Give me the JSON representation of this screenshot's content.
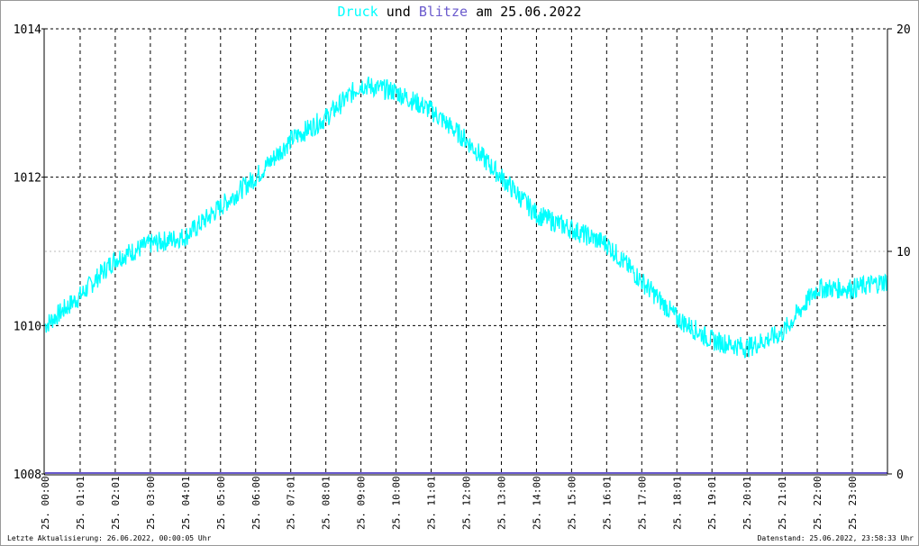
{
  "title": {
    "part1": "Druck",
    "part2": "und",
    "part3": "Blitze",
    "part4": "am 25.06.2022"
  },
  "footer": {
    "left": "Letzte Aktualisierung: 26.06.2022, 00:00:05 Uhr",
    "right": "Datenstand: 25.06.2022, 23:58:33 Uhr"
  },
  "colors": {
    "druck": "#00ffff",
    "blitze": "#6a5acd",
    "grid": "#000000"
  },
  "chart_data": {
    "type": "line",
    "title": "Druck und Blitze am 25.06.2022",
    "x_unit": "hours",
    "xlim": [
      0,
      24
    ],
    "ylim_left": [
      1008,
      1014
    ],
    "ylim_right": [
      0,
      20
    ],
    "yticks_left": [
      "1008",
      "1010",
      "1012",
      "1014"
    ],
    "yticks_right": [
      "0",
      "10",
      "20"
    ],
    "xtick_labels": [
      "25. 00:00",
      "25. 01:01",
      "25. 02:01",
      "25. 03:00",
      "25. 04:01",
      "25. 05:00",
      "25. 06:00",
      "25. 07:01",
      "25. 08:01",
      "25. 09:00",
      "25. 10:00",
      "25. 11:01",
      "25. 12:00",
      "25. 13:00",
      "25. 14:00",
      "25. 15:00",
      "25. 16:01",
      "25. 17:00",
      "25. 18:01",
      "25. 19:01",
      "25. 20:01",
      "25. 21:01",
      "25. 22:00",
      "25. 23:00"
    ],
    "series": [
      {
        "name": "Druck",
        "axis": "left",
        "x": [
          0,
          1,
          2,
          3,
          4,
          5,
          6,
          7,
          8,
          9,
          10,
          11,
          12,
          13,
          14,
          15,
          16,
          17,
          18,
          19,
          20,
          21,
          22,
          23,
          24
        ],
        "values": [
          1010.0,
          1010.4,
          1010.9,
          1011.1,
          1011.2,
          1011.6,
          1012.0,
          1012.5,
          1012.8,
          1013.25,
          1013.15,
          1012.9,
          1012.5,
          1012.0,
          1011.5,
          1011.3,
          1011.1,
          1010.6,
          1010.1,
          1009.8,
          1009.7,
          1009.9,
          1010.5,
          1010.5,
          1010.6
        ]
      },
      {
        "name": "Blitze",
        "axis": "right",
        "x": [
          0,
          24
        ],
        "values": [
          0,
          0
        ]
      }
    ]
  }
}
